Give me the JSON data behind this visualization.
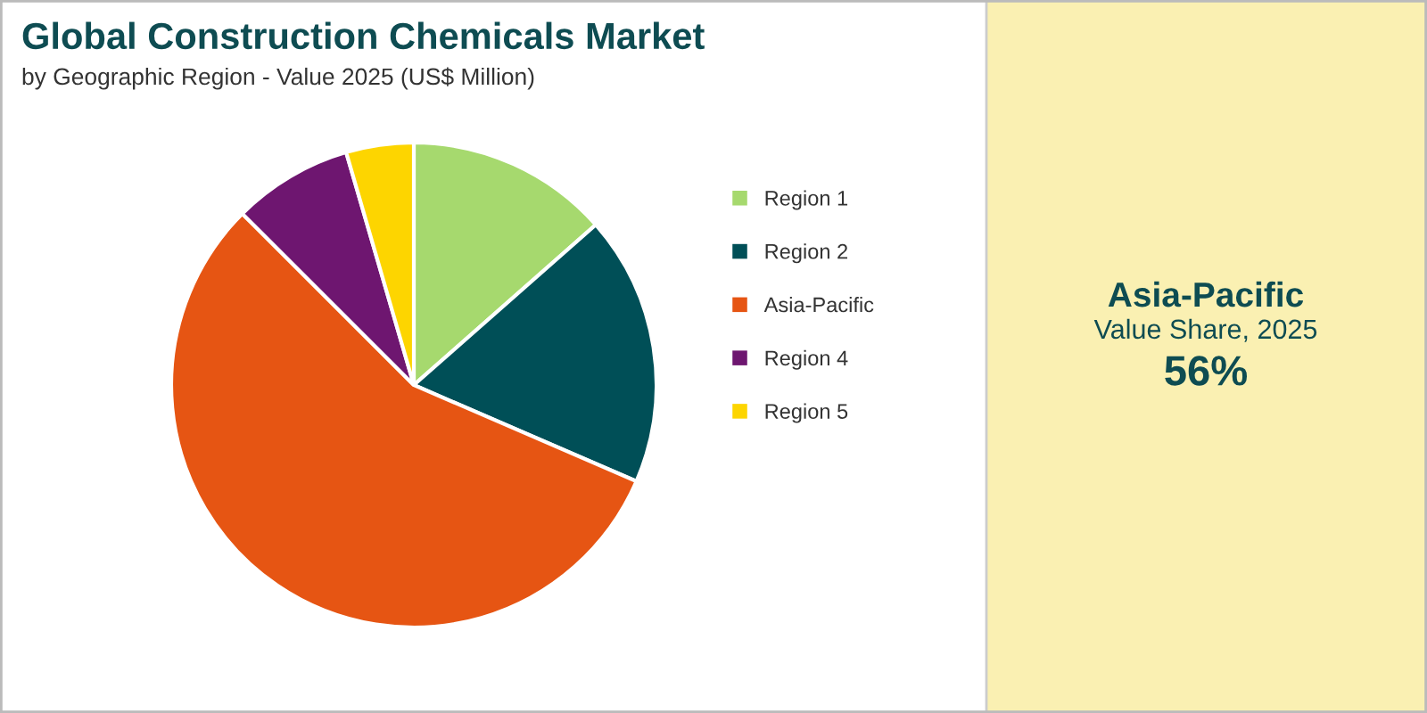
{
  "chart_data": {
    "type": "pie",
    "title": "Global Construction Chemicals Market",
    "subtitle": "by Geographic Region - Value 2025 (US$ Million)",
    "categories": [
      "Region 1",
      "Region 2",
      "Asia-Pacific",
      "Region 4",
      "Region 5"
    ],
    "values": [
      13.5,
      18,
      56,
      8,
      4.5
    ],
    "colors": [
      "#a6d96e",
      "#004f57",
      "#e65513",
      "#6e1670",
      "#fdd500"
    ],
    "legend": "right",
    "annotations": [
      "Asia-Pacific",
      "Value Share, 2025",
      "56%"
    ]
  }
}
